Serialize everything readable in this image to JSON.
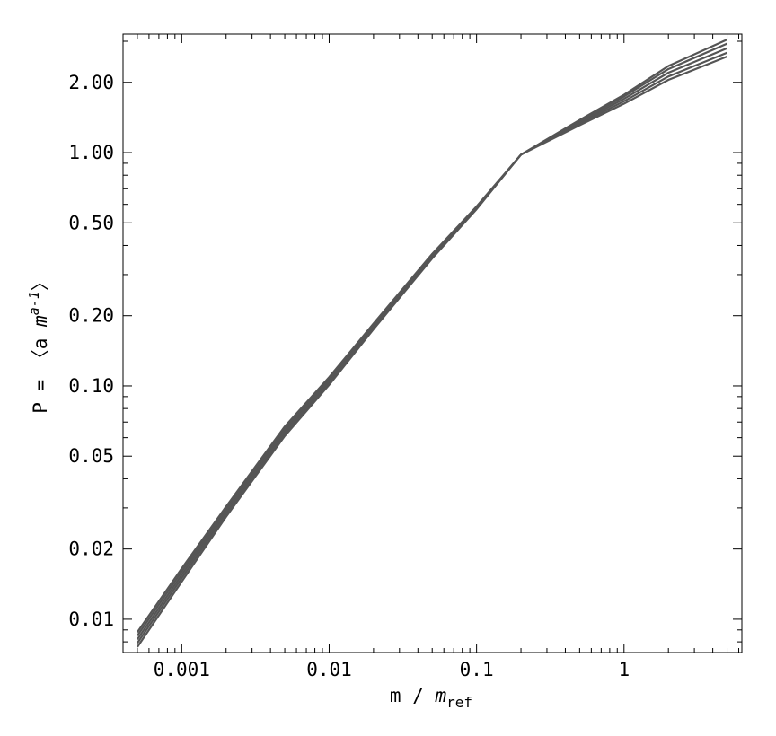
{
  "chart_data": {
    "type": "line",
    "xlabel": [
      "m / ",
      "m",
      "ref"
    ],
    "ylabel": [
      "P = 〈a  ",
      "m",
      "a-1",
      "〉"
    ],
    "log_x": true,
    "log_y": true,
    "x": [
      0.0005,
      0.001,
      0.002,
      0.005,
      0.01,
      0.02,
      0.05,
      0.1,
      0.2,
      0.5,
      1,
      2,
      5
    ],
    "series": [
      {
        "color": "#555555",
        "values": [
          0.0076,
          0.0145,
          0.0275,
          0.061,
          0.101,
          0.175,
          0.352,
          0.572,
          0.98,
          1.38,
          1.77,
          2.35,
          3.05
        ]
      },
      {
        "color": "#555555",
        "values": [
          0.0079,
          0.015,
          0.0283,
          0.0625,
          0.103,
          0.178,
          0.356,
          0.576,
          0.98,
          1.37,
          1.74,
          2.28,
          2.93
        ]
      },
      {
        "color": "#555555",
        "values": [
          0.0082,
          0.0155,
          0.029,
          0.064,
          0.105,
          0.18,
          0.36,
          0.58,
          0.98,
          1.35,
          1.7,
          2.2,
          2.8
        ]
      },
      {
        "color": "#555555",
        "values": [
          0.0085,
          0.016,
          0.0297,
          0.0655,
          0.107,
          0.182,
          0.364,
          0.584,
          0.98,
          1.33,
          1.66,
          2.12,
          2.68
        ]
      },
      {
        "color": "#555555",
        "values": [
          0.0088,
          0.0165,
          0.0304,
          0.067,
          0.109,
          0.185,
          0.368,
          0.588,
          0.98,
          1.31,
          1.62,
          2.05,
          2.58
        ]
      }
    ],
    "xlim": [
      0.0004,
      6.3
    ],
    "ylim": [
      0.0072,
      3.22
    ],
    "xticks": [
      0.001,
      0.01,
      0.1,
      1
    ],
    "yticks": [
      {
        "value": 0.01,
        "label": "0.01"
      },
      {
        "value": 0.02,
        "label": "0.02"
      },
      {
        "value": 0.05,
        "label": "0.05"
      },
      {
        "value": 0.1,
        "label": "0.10"
      },
      {
        "value": 0.2,
        "label": "0.20"
      },
      {
        "value": 0.5,
        "label": "0.50"
      },
      {
        "value": 1,
        "label": "1.00"
      },
      {
        "value": 2,
        "label": "2.00"
      }
    ],
    "xminorticks": [
      0.0005,
      0.0006,
      0.0007,
      0.0008,
      0.0009,
      0.002,
      0.003,
      0.004,
      0.005,
      0.006,
      0.007,
      0.008,
      0.009,
      0.02,
      0.03,
      0.04,
      0.05,
      0.06,
      0.07,
      0.08,
      0.09,
      0.2,
      0.3,
      0.4,
      0.5,
      0.6,
      0.7,
      0.8,
      0.9,
      2,
      3,
      4,
      5,
      6
    ],
    "yminorticks": [
      0.008,
      0.009,
      0.03,
      0.04,
      0.06,
      0.07,
      0.08,
      0.09,
      0.3,
      0.4,
      0.6,
      0.7,
      0.8,
      0.9,
      3
    ]
  }
}
